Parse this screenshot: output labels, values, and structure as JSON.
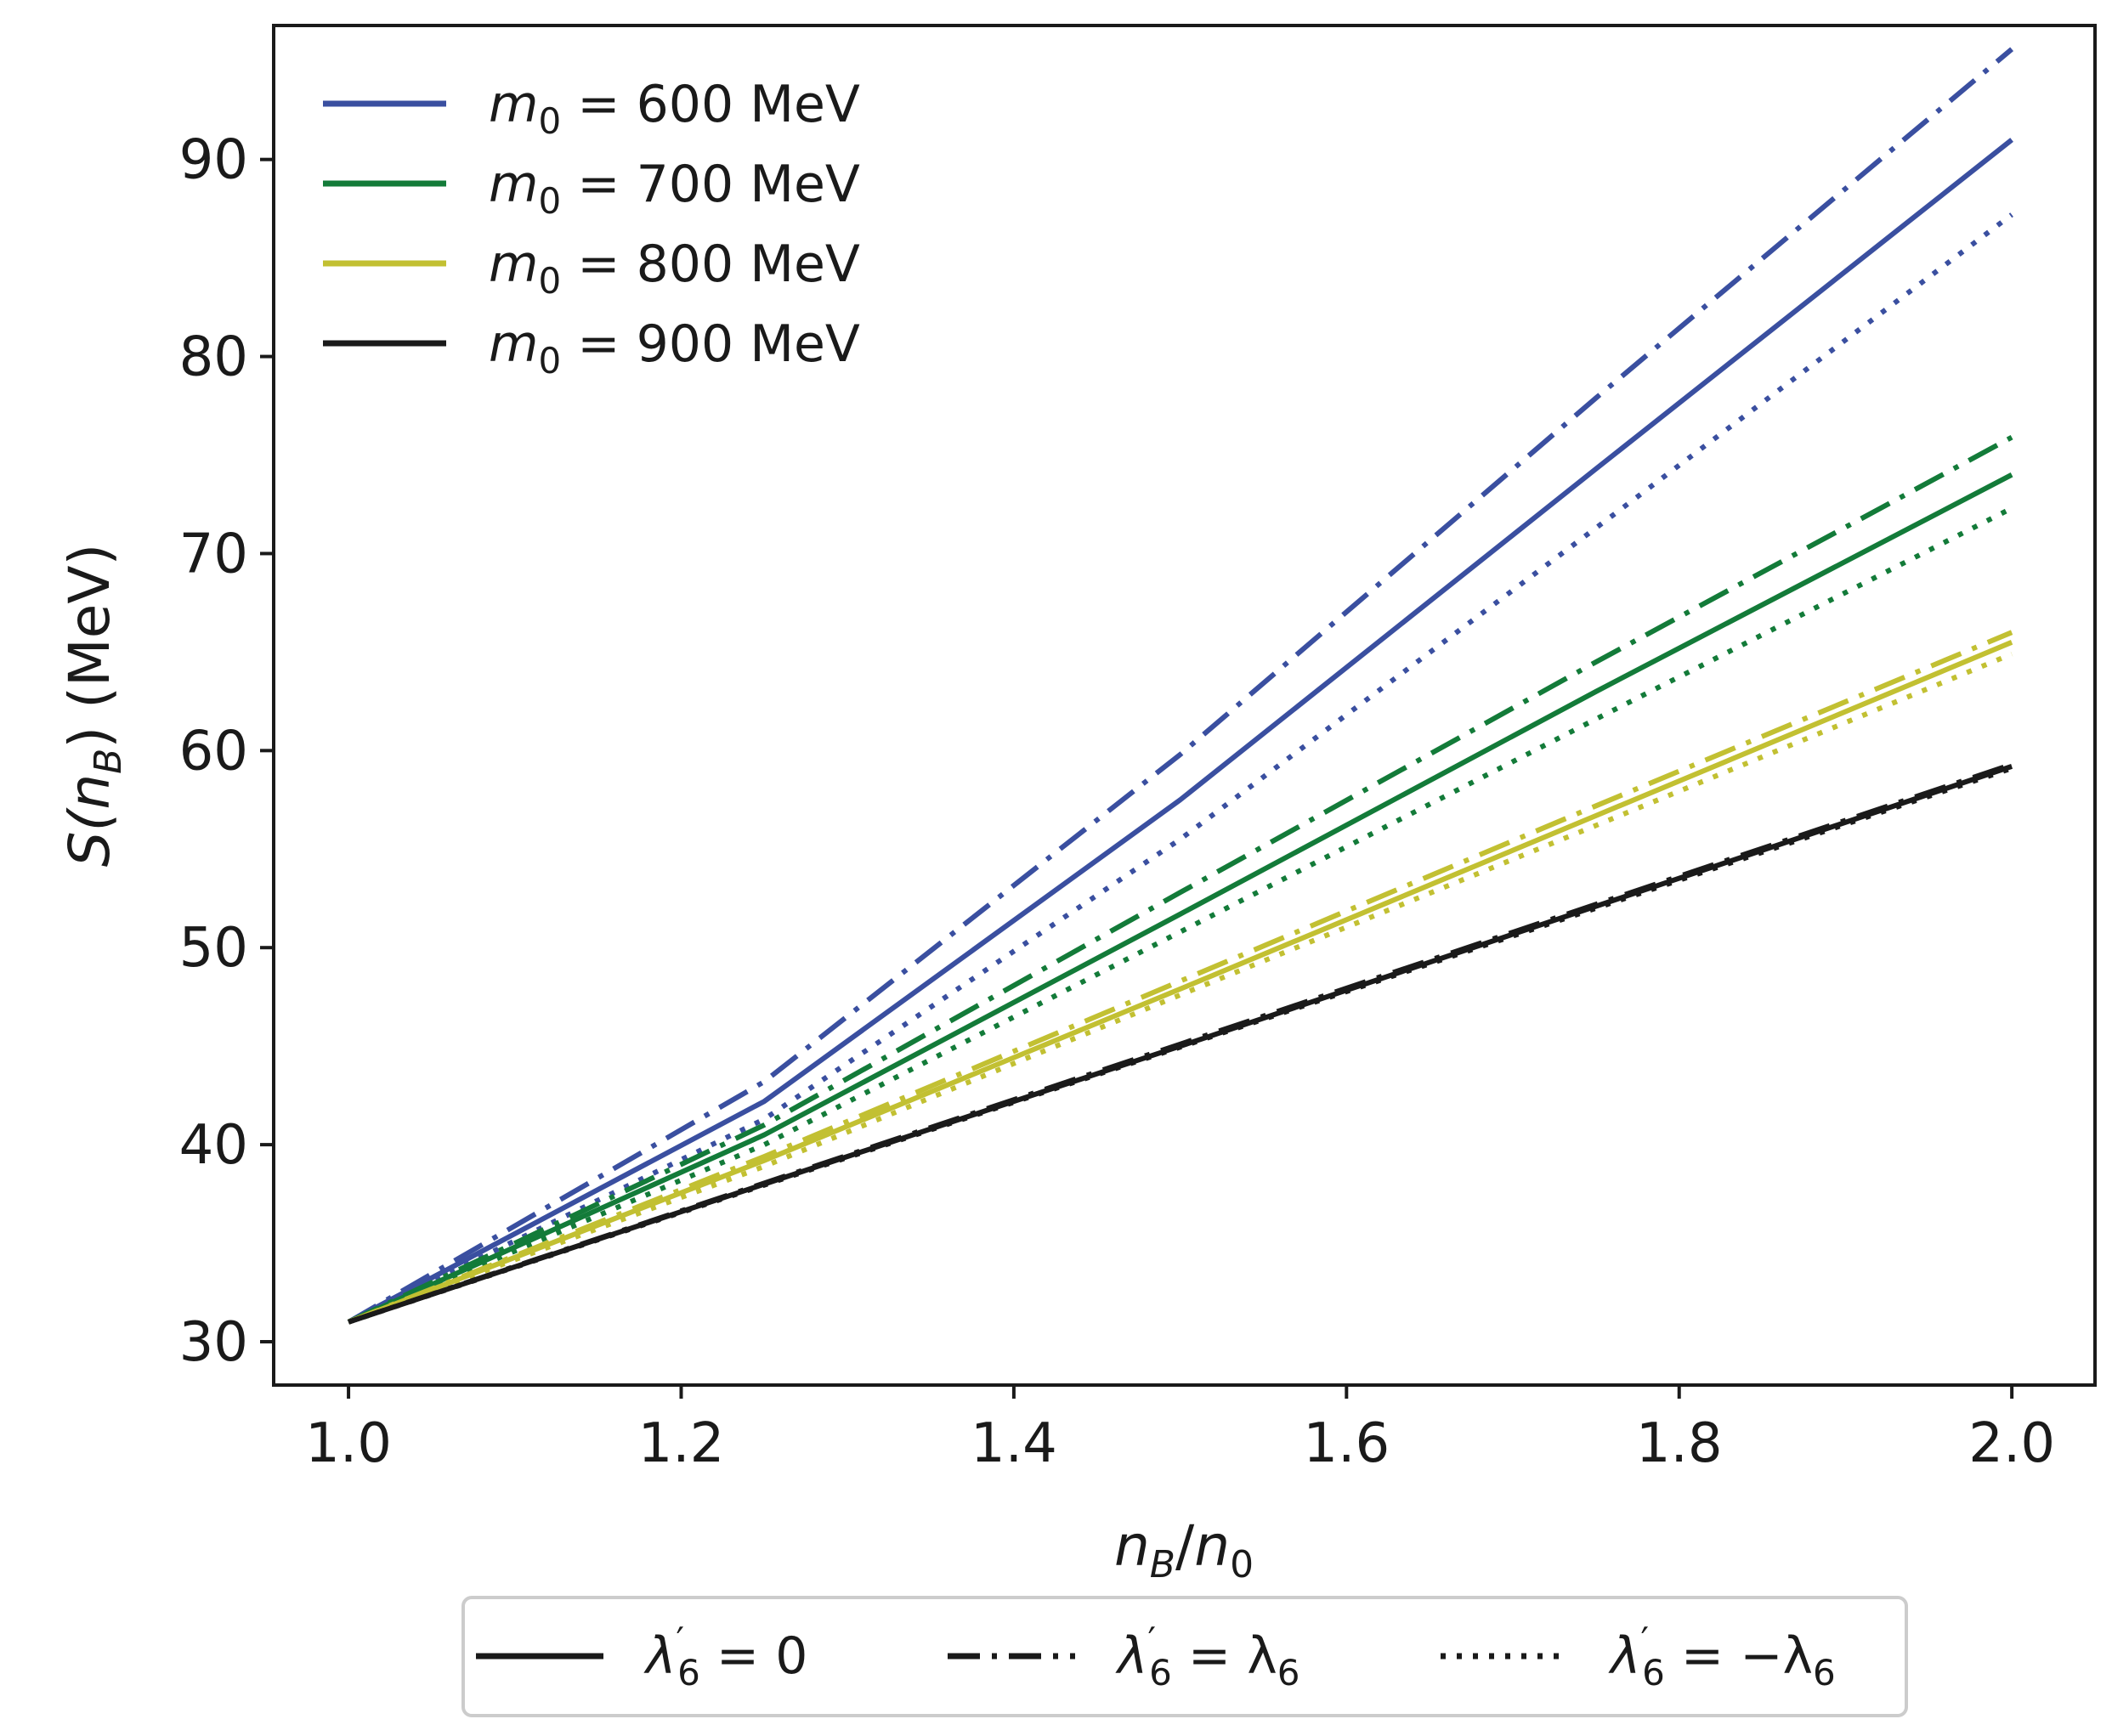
{
  "chart_data": {
    "type": "line",
    "xlabel_base": "n",
    "xlabel_sub1": "B",
    "xlabel_sep": "/",
    "xlabel_sub2": "0",
    "ylabel_main": "S(n",
    "ylabel_sub": "B",
    "ylabel_tail": ") (MeV)",
    "xlim": [
      0.955,
      2.05
    ],
    "ylim": [
      27.8,
      96.8
    ],
    "xticks": [
      "1.0",
      "1.2",
      "1.4",
      "1.6",
      "1.8",
      "2.0"
    ],
    "xtick_values": [
      1.0,
      1.2,
      1.4,
      1.6,
      1.8,
      2.0
    ],
    "yticks": [
      "30",
      "40",
      "50",
      "60",
      "70",
      "80",
      "90"
    ],
    "ytick_values": [
      30,
      40,
      50,
      60,
      70,
      80,
      90
    ],
    "grid": false,
    "colors": {
      "600": "#3a4fa0",
      "700": "#137b39",
      "800": "#c2c032",
      "900": "#1a1a1a",
      "axis": "#1a1a1a"
    },
    "mass_legend": {
      "placement": "top-left",
      "entries": [
        {
          "prefix": "m",
          "sub": "0",
          "label": " = 600 MeV",
          "color_key": "600"
        },
        {
          "prefix": "m",
          "sub": "0",
          "label": " = 700 MeV",
          "color_key": "700"
        },
        {
          "prefix": "m",
          "sub": "0",
          "label": " = 800 MeV",
          "color_key": "800"
        },
        {
          "prefix": "m",
          "sub": "0",
          "label": " = 900 MeV",
          "color_key": "900"
        }
      ]
    },
    "style_legend": {
      "placement": "below-axes",
      "entries": [
        {
          "style": "solid",
          "sym": "λ",
          "sup": "′",
          "sub": "6",
          "rhs": " = 0"
        },
        {
          "style": "dashdot",
          "sym": "λ",
          "sup": "′",
          "sub": "6",
          "rhs": " = λ",
          "rhs_sub": "6"
        },
        {
          "style": "dotted",
          "sym": "λ",
          "sup": "′",
          "sub": "6",
          "rhs": " = −λ",
          "rhs_sub": "6"
        }
      ]
    },
    "series": [
      {
        "name": "m0 = 600 MeV, λ6' = 0",
        "color_key": "600",
        "style": "solid",
        "x": [
          1.0,
          1.25,
          1.5,
          1.75,
          2.0
        ],
        "y": [
          31,
          42.2,
          57.5,
          74.3,
          91.0
        ]
      },
      {
        "name": "m0 = 600 MeV, λ6' = λ6",
        "color_key": "600",
        "style": "dashdot",
        "x": [
          1.0,
          1.25,
          1.5,
          1.75,
          2.0
        ],
        "y": [
          31,
          43.2,
          59.8,
          77.9,
          95.6
        ]
      },
      {
        "name": "m0 = 600 MeV, λ6' = -λ6",
        "color_key": "600",
        "style": "dotted",
        "x": [
          1.0,
          1.25,
          1.5,
          1.75,
          2.0
        ],
        "y": [
          31,
          41.3,
          55.5,
          71.3,
          87.2
        ]
      },
      {
        "name": "m0 = 700 MeV, λ6' = 0",
        "color_key": "700",
        "style": "solid",
        "x": [
          1.0,
          1.25,
          1.5,
          1.75,
          2.0
        ],
        "y": [
          31,
          40.5,
          51.7,
          63.0,
          74.0
        ]
      },
      {
        "name": "m0 = 700 MeV, λ6' = λ6",
        "color_key": "700",
        "style": "dashdot",
        "x": [
          1.0,
          1.25,
          1.5,
          1.75,
          2.0
        ],
        "y": [
          31,
          41.0,
          52.8,
          64.5,
          75.9
        ]
      },
      {
        "name": "m0 = 700 MeV, λ6' = -λ6",
        "color_key": "700",
        "style": "dotted",
        "x": [
          1.0,
          1.25,
          1.5,
          1.75,
          2.0
        ],
        "y": [
          31,
          40.0,
          50.8,
          61.6,
          72.3
        ]
      },
      {
        "name": "m0 = 800 MeV, λ6' = 0",
        "color_key": "800",
        "style": "solid",
        "x": [
          1.0,
          1.25,
          1.5,
          1.75,
          2.0
        ],
        "y": [
          31,
          39.2,
          47.9,
          56.7,
          65.5
        ]
      },
      {
        "name": "m0 = 800 MeV, λ6' = λ6",
        "color_key": "800",
        "style": "dashdot",
        "x": [
          1.0,
          1.25,
          1.5,
          1.75,
          2.0
        ],
        "y": [
          31,
          39.4,
          48.3,
          57.2,
          66.0
        ]
      },
      {
        "name": "m0 = 800 MeV, λ6' = -λ6",
        "color_key": "800",
        "style": "dotted",
        "x": [
          1.0,
          1.25,
          1.5,
          1.75,
          2.0
        ],
        "y": [
          31,
          38.9,
          47.6,
          56.2,
          64.9
        ]
      },
      {
        "name": "m0 = 900 MeV, λ6' = 0",
        "color_key": "900",
        "style": "solid",
        "x": [
          1.0,
          1.25,
          1.5,
          1.75,
          2.0
        ],
        "y": [
          31,
          38.0,
          45.0,
          52.1,
          59.2
        ]
      },
      {
        "name": "m0 = 900 MeV, λ6' = λ6",
        "color_key": "900",
        "style": "dashdot",
        "x": [
          1.0,
          1.25,
          1.5,
          1.75,
          2.0
        ],
        "y": [
          31,
          38.05,
          45.1,
          52.2,
          59.3
        ]
      },
      {
        "name": "m0 = 900 MeV, λ6' = -λ6",
        "color_key": "900",
        "style": "dotted",
        "x": [
          1.0,
          1.25,
          1.5,
          1.75,
          2.0
        ],
        "y": [
          31,
          37.95,
          44.95,
          52.0,
          59.1
        ]
      }
    ]
  }
}
